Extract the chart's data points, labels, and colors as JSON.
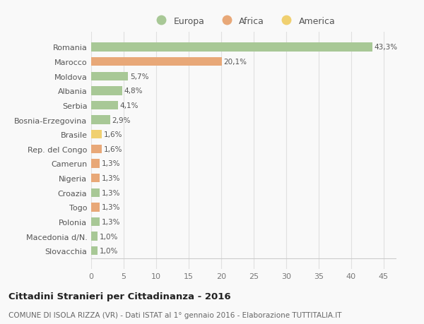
{
  "countries": [
    "Romania",
    "Marocco",
    "Moldova",
    "Albania",
    "Serbia",
    "Bosnia-Erzegovina",
    "Brasile",
    "Rep. del Congo",
    "Camerun",
    "Nigeria",
    "Croazia",
    "Togo",
    "Polonia",
    "Macedonia d/N.",
    "Slovacchia"
  ],
  "values": [
    43.3,
    20.1,
    5.7,
    4.8,
    4.1,
    2.9,
    1.6,
    1.6,
    1.3,
    1.3,
    1.3,
    1.3,
    1.3,
    1.0,
    1.0
  ],
  "continents": [
    "Europa",
    "Africa",
    "Europa",
    "Europa",
    "Europa",
    "Europa",
    "America",
    "Africa",
    "Africa",
    "Africa",
    "Europa",
    "Africa",
    "Europa",
    "Europa",
    "Europa"
  ],
  "colors": {
    "Europa": "#a8c896",
    "Africa": "#e8a878",
    "America": "#f0d070"
  },
  "legend_order": [
    "Europa",
    "Africa",
    "America"
  ],
  "title_bold": "Cittadini Stranieri per Cittadinanza - 2016",
  "subtitle": "COMUNE DI ISOLA RIZZA (VR) - Dati ISTAT al 1° gennaio 2016 - Elaborazione TUTTITALIA.IT",
  "xlim": [
    0,
    47
  ],
  "xticks": [
    0,
    5,
    10,
    15,
    20,
    25,
    30,
    35,
    40,
    45
  ],
  "background_color": "#f9f9f9",
  "grid_color": "#e0e0e0"
}
